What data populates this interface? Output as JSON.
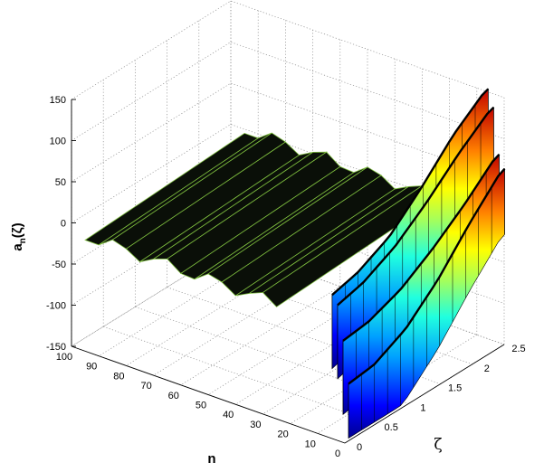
{
  "chart_data": {
    "type": "surface3d",
    "zlabel": "a",
    "zlabel_sub": "n",
    "zlabel_arg": "(ζ)",
    "xlabel": "n",
    "ylabel": "ζ",
    "z_ticks": [
      "150",
      "100",
      "50",
      "0",
      "-50",
      "-100",
      "-150"
    ],
    "n_ticks": [
      "100",
      "90",
      "80",
      "70",
      "60",
      "50",
      "40",
      "30",
      "20",
      "10",
      "0"
    ],
    "zeta_ticks": [
      "0",
      "0.5",
      "1",
      "1.5",
      "2",
      "2.5"
    ],
    "zlim": [
      -150,
      150
    ],
    "nlim": [
      0,
      100
    ],
    "zetalim": [
      0,
      2.5
    ],
    "grid": true,
    "colormap": "jet",
    "surface_description": "a_n(ζ) grows with ζ for small n; for n > about 20 the surface is nearly flat near 0 with small oscillations",
    "edge_curves": [
      {
        "n": 1,
        "values": [
          {
            "zeta": 0,
            "a": -85
          },
          {
            "zeta": 0.5,
            "a": -80
          },
          {
            "zeta": 1,
            "a": -60
          },
          {
            "zeta": 1.5,
            "a": -25
          },
          {
            "zeta": 2,
            "a": 20
          },
          {
            "zeta": 2.5,
            "a": 60
          }
        ]
      },
      {
        "n": 3,
        "values": [
          {
            "zeta": 0,
            "a": -35
          },
          {
            "zeta": 0.5,
            "a": -30
          },
          {
            "zeta": 1,
            "a": -15
          },
          {
            "zeta": 1.5,
            "a": 10
          },
          {
            "zeta": 2,
            "a": 40
          },
          {
            "zeta": 2.5,
            "a": 75
          }
        ]
      },
      {
        "n": 5,
        "values": [
          {
            "zeta": 0,
            "a": 5
          },
          {
            "zeta": 0.5,
            "a": 15
          },
          {
            "zeta": 1,
            "a": 35
          },
          {
            "zeta": 1.5,
            "a": 65
          },
          {
            "zeta": 2,
            "a": 100
          },
          {
            "zeta": 2.5,
            "a": 130
          }
        ]
      },
      {
        "n": 7,
        "values": [
          {
            "zeta": 0,
            "a": 15
          },
          {
            "zeta": 0.5,
            "a": 25
          },
          {
            "zeta": 1,
            "a": 45
          },
          {
            "zeta": 1.5,
            "a": 80
          },
          {
            "zeta": 2,
            "a": 120
          },
          {
            "zeta": 2.5,
            "a": 150
          }
        ]
      }
    ]
  }
}
